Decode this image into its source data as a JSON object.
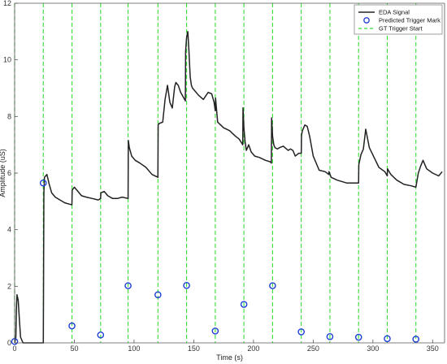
{
  "chart_data": {
    "type": "line",
    "xlabel": "Time (s)",
    "ylabel": "Amplitude (uS)",
    "xlim": [
      0,
      360
    ],
    "ylim": [
      0,
      12
    ],
    "xticks": [
      0,
      50,
      100,
      150,
      200,
      250,
      300,
      350
    ],
    "yticks": [
      0,
      2,
      4,
      6,
      8,
      10,
      12
    ],
    "grid": false,
    "legend_position": "top-right",
    "legend": [
      "EDA Signal",
      "Predicted Trigger Mark",
      "GT Trigger Start"
    ],
    "colors": {
      "signal": "#222222",
      "marker": "#1f3fd6",
      "gt": "#33dd33",
      "axis": "#555555"
    },
    "series": [
      {
        "name": "EDA Signal",
        "style": "solid-line",
        "x": [
          0,
          1,
          1.5,
          2,
          3,
          4,
          5,
          7,
          10,
          24,
          24.5,
          25,
          26,
          27,
          29,
          31,
          34,
          38,
          42,
          46,
          48,
          48.2,
          50,
          53,
          56,
          60,
          65,
          70,
          72,
          72.2,
          75,
          78,
          82,
          86,
          90,
          95,
          95.2,
          96,
          98,
          101,
          105,
          110,
          115,
          120,
          120.2,
          121,
          124,
          126,
          128,
          130,
          132,
          134,
          135,
          137,
          139,
          141,
          143,
          143.2,
          144,
          145,
          146,
          147,
          148,
          149,
          151,
          154,
          158,
          162,
          165,
          167,
          168,
          168.2,
          170,
          175,
          180,
          185,
          188,
          191,
          191.2,
          192,
          193,
          194,
          196,
          198,
          201,
          205,
          210,
          214,
          215,
          215.2,
          216,
          217,
          218,
          220,
          222,
          225,
          229,
          231,
          233,
          235,
          238,
          240,
          240.2,
          241,
          243,
          245,
          247,
          250,
          255,
          260,
          263,
          263.2,
          265,
          270,
          278,
          285,
          288,
          288.2,
          290,
          292,
          294,
          297,
          301,
          305,
          310,
          312,
          312.2,
          315,
          320,
          326,
          332,
          336,
          338,
          340,
          342,
          345,
          350,
          355,
          358
        ],
        "y": [
          0,
          0.2,
          1.2,
          1.7,
          1.5,
          0.8,
          0.2,
          0,
          0,
          0,
          5.3,
          5.85,
          5.9,
          5.95,
          5.6,
          5.3,
          5.15,
          5.05,
          4.95,
          4.9,
          4.88,
          5.4,
          5.5,
          5.35,
          5.2,
          5.15,
          5.1,
          5.05,
          5.1,
          5.3,
          5.35,
          5.2,
          5.1,
          5.1,
          5.15,
          5.1,
          7.15,
          6.9,
          6.6,
          6.45,
          6.35,
          6.2,
          5.95,
          5.85,
          7.7,
          7.75,
          7.8,
          8.6,
          9.1,
          8.5,
          8.3,
          9.05,
          9.2,
          9.1,
          8.85,
          8.7,
          8.55,
          10.3,
          10.8,
          11.0,
          10.3,
          9.4,
          9.1,
          9.0,
          8.9,
          8.75,
          8.6,
          8.85,
          8.8,
          8.5,
          8.2,
          8.65,
          7.8,
          7.6,
          7.5,
          7.3,
          7.2,
          7.0,
          8.3,
          7.6,
          7.1,
          6.8,
          7.0,
          6.75,
          6.6,
          6.55,
          6.45,
          6.4,
          6.35,
          7.95,
          7.3,
          7.0,
          6.9,
          6.85,
          6.9,
          6.95,
          6.8,
          6.85,
          6.8,
          6.6,
          6.7,
          6.7,
          7.35,
          7.5,
          7.7,
          7.65,
          7.3,
          6.6,
          6.1,
          6.05,
          5.95,
          6.05,
          5.85,
          5.75,
          5.65,
          5.65,
          5.65,
          6.3,
          6.65,
          6.85,
          7.55,
          6.9,
          6.55,
          6.2,
          6.05,
          5.9,
          6.15,
          5.95,
          5.75,
          5.6,
          5.55,
          5.5,
          6.0,
          6.25,
          6.45,
          6.15,
          6.0,
          5.9,
          6.05
        ]
      },
      {
        "name": "Predicted Trigger Mark",
        "style": "circle-marker",
        "x": [
          0,
          24,
          48,
          72,
          95,
          120,
          144,
          168,
          192,
          216,
          240,
          264,
          288,
          312,
          336
        ],
        "y": [
          0.05,
          5.65,
          0.6,
          0.28,
          2.02,
          1.7,
          2.03,
          0.42,
          1.36,
          2.02,
          0.39,
          0.22,
          0.2,
          0.15,
          0.13
        ]
      },
      {
        "name": "GT Trigger Start",
        "style": "dashed-vertical",
        "x": [
          0,
          24,
          48,
          72,
          95,
          120,
          144,
          168,
          192,
          216,
          240,
          264,
          288,
          312,
          336
        ]
      }
    ]
  }
}
